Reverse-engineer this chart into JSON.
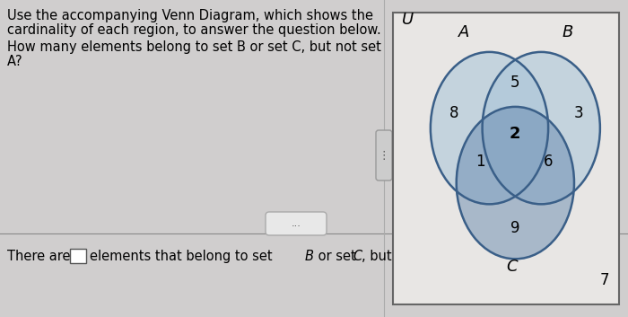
{
  "bg_color": "#d0cece",
  "left_bg": "#d4d2d2",
  "venn_box_bg": "#e8e6e4",
  "circle_light": "#a8c4d8",
  "circle_dark": "#5a80aa",
  "outline_color": "#3a5f88",
  "label_text_line1": "Use the accompanying Venn Diagram, which shows the",
  "label_text_line2": "cardinality of each region, to answer the question below.",
  "question_line1": "How many elements belong to set B or set C, but not set",
  "question_line2": "A?",
  "region_values": {
    "A_only": "8",
    "B_only": "3",
    "C_only": "9",
    "AB_only": "5",
    "AC_only": "1",
    "BC_only": "6",
    "ABC": "2",
    "outside": "7"
  },
  "set_labels": {
    "A": "A",
    "B": "B",
    "C": "C",
    "U": "U"
  }
}
